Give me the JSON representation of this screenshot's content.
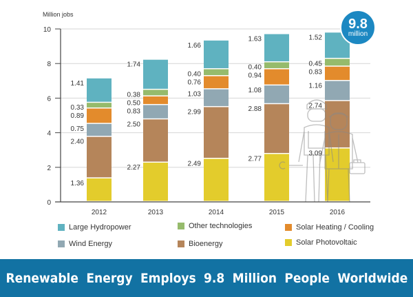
{
  "chart_data": {
    "type": "bar",
    "stacked": true,
    "title": "",
    "ylabel": "Million jobs",
    "xlabel": "",
    "ylim": [
      0,
      10
    ],
    "yticks": [
      0,
      2,
      4,
      6,
      8,
      10
    ],
    "grid": true,
    "categories": [
      "2012",
      "2013",
      "2014",
      "2015",
      "2016"
    ],
    "series": [
      {
        "name": "Solar Photovoltaic",
        "color": "#e3cc2c",
        "values": [
          1.36,
          2.27,
          2.49,
          2.77,
          3.09
        ]
      },
      {
        "name": "Bioenergy",
        "color": "#b5855a",
        "values": [
          2.4,
          2.5,
          2.99,
          2.88,
          2.74
        ]
      },
      {
        "name": "Wind Energy",
        "color": "#91a8b3",
        "values": [
          0.75,
          0.83,
          1.03,
          1.08,
          1.16
        ]
      },
      {
        "name": "Solar Heating / Cooling",
        "color": "#e38b2c",
        "values": [
          0.89,
          0.5,
          0.76,
          0.94,
          0.83
        ]
      },
      {
        "name": "Other technologies",
        "color": "#96bb6c",
        "values": [
          0.33,
          0.38,
          0.4,
          0.4,
          0.45
        ]
      },
      {
        "name": "Large Hydropower",
        "color": "#5fb2c0",
        "values": [
          1.41,
          1.74,
          1.66,
          1.63,
          1.52
        ]
      }
    ],
    "legend_position": "bottom",
    "annotations": [
      {
        "text": "9.8 million",
        "target": "2016"
      }
    ]
  },
  "legend": {
    "items": [
      {
        "label": "Large Hydropower",
        "color": "#5fb2c0"
      },
      {
        "label": "Other technologies",
        "color": "#96bb6c"
      },
      {
        "label": "Solar Heating / Cooling",
        "color": "#e38b2c"
      },
      {
        "label": "Wind Energy",
        "color": "#91a8b3"
      },
      {
        "label": "Bioenergy",
        "color": "#b5855a"
      },
      {
        "label": "Solar Photovoltaic",
        "color": "#e3cc2c"
      }
    ]
  },
  "badge": {
    "number": "9.8",
    "unit": "million"
  },
  "banner": {
    "text": "Renewable Energy Employs 9.8 Million People Worldwide"
  }
}
